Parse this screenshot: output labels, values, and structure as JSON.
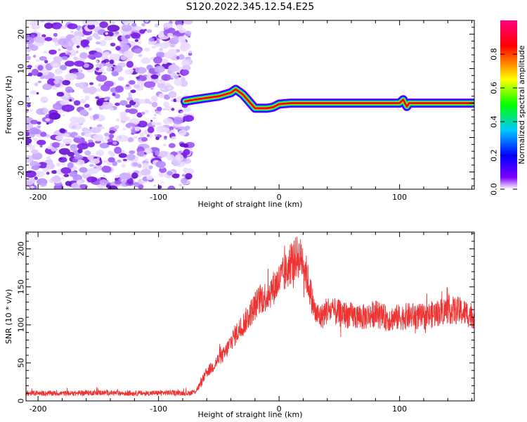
{
  "figure": {
    "title": "S120.2022.345.12.54.E25"
  },
  "chart_data": [
    {
      "type": "heatmap",
      "xlabel": "Height of straight line (km)",
      "ylabel": "Frequency (Hz)",
      "xlim": [
        -210,
        162
      ],
      "ylim": [
        -25,
        24
      ],
      "xticks": [
        -200,
        -100,
        0,
        100
      ],
      "yticks": [
        -20,
        -10,
        0,
        10,
        20
      ],
      "colorbar": {
        "label": "Normalized spectral amplitude",
        "range": [
          0,
          1
        ],
        "ticks": [
          0.0,
          0.2,
          0.4,
          0.6,
          0.8
        ],
        "colors": [
          "#ffffff",
          "#7b00ff",
          "#0000ff",
          "#00c8ff",
          "#00ff00",
          "#ffff00",
          "#ff0000",
          "#ff0080"
        ]
      },
      "noise_region_x": [
        -210,
        -78
      ],
      "signal_trace": {
        "x": [
          -78,
          -70,
          -60,
          -50,
          -40,
          -36,
          -30,
          -25,
          -20,
          -15,
          -10,
          -5,
          0,
          10,
          20,
          30,
          40,
          60,
          80,
          100,
          103,
          106,
          108,
          120,
          140,
          162
        ],
        "y": [
          0.5,
          1,
          1.5,
          2,
          3,
          4,
          2.5,
          0.5,
          -1.5,
          -1.5,
          -1.5,
          -1.2,
          -0.3,
          0,
          0,
          0,
          0,
          0,
          0,
          0,
          1,
          -1,
          0,
          0,
          0,
          0
        ]
      }
    },
    {
      "type": "line",
      "xlabel": "Height of straight line (km)",
      "ylabel": "SNR (10 * v/v)",
      "xlim": [
        -210,
        162
      ],
      "ylim": [
        0,
        222
      ],
      "xticks": [
        -200,
        -100,
        0,
        100
      ],
      "yticks": [
        0,
        50,
        100,
        150,
        200
      ],
      "color": "#ee3333",
      "series": [
        {
          "x": [
            -210,
            -190,
            -170,
            -150,
            -130,
            -110,
            -90,
            -75,
            -70,
            -65,
            -60,
            -55,
            -50,
            -45,
            -40,
            -35,
            -30,
            -25,
            -20,
            -15,
            -10,
            -5,
            0,
            5,
            10,
            15,
            20,
            25,
            30,
            35,
            40,
            50,
            60,
            70,
            80,
            90,
            100,
            110,
            120,
            130,
            140,
            150,
            162
          ],
          "values": [
            10,
            10,
            10,
            11,
            10,
            10,
            11,
            10,
            12,
            22,
            38,
            45,
            55,
            62,
            78,
            90,
            100,
            112,
            125,
            135,
            138,
            148,
            158,
            168,
            180,
            190,
            185,
            150,
            115,
            110,
            120,
            115,
            112,
            110,
            115,
            108,
            110,
            112,
            110,
            115,
            120,
            118,
            112
          ]
        }
      ]
    }
  ]
}
